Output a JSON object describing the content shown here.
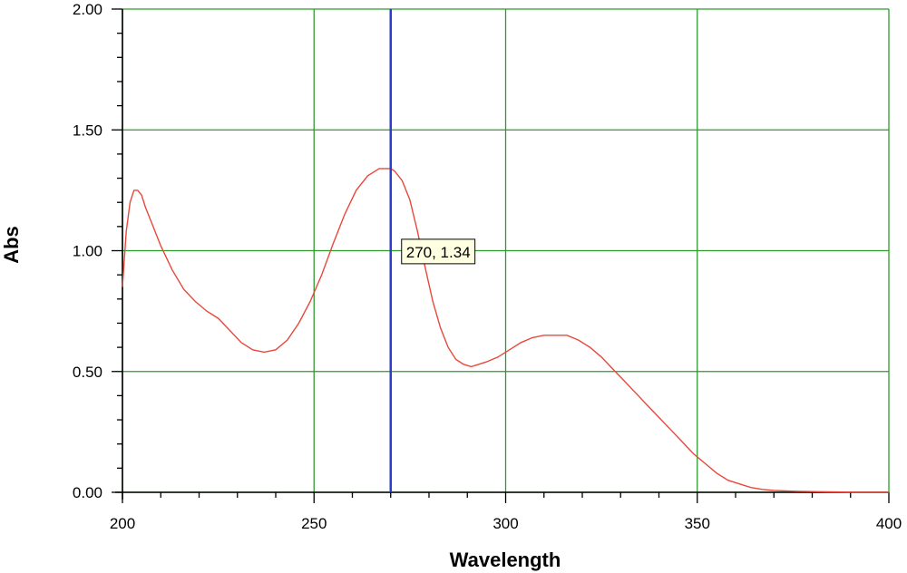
{
  "chart_data": {
    "type": "line",
    "xlabel": "Wavelength",
    "ylabel": "Abs",
    "xlim": [
      200,
      400
    ],
    "ylim": [
      0,
      2
    ],
    "x_ticks": [
      "200",
      "250",
      "300",
      "350",
      "400"
    ],
    "y_ticks": [
      "0.00",
      "0.50",
      "1.00",
      "1.50",
      "2.00"
    ],
    "grid": true,
    "series": [
      {
        "color": "#e8483c",
        "x": [
          200,
          201,
          202,
          203,
          204,
          205,
          206,
          208,
          210,
          213,
          216,
          219,
          222,
          225,
          228,
          231,
          234,
          237,
          240,
          243,
          246,
          249,
          252,
          255,
          258,
          261,
          264,
          267,
          269,
          270,
          271,
          273,
          275,
          277,
          279,
          281,
          283,
          285,
          287,
          289,
          291,
          293,
          295,
          298,
          301,
          304,
          307,
          310,
          313,
          316,
          319,
          322,
          325,
          328,
          331,
          334,
          337,
          340,
          343,
          346,
          349,
          352,
          355,
          358,
          361,
          364,
          367,
          370,
          373,
          376,
          380,
          384,
          388,
          392,
          396,
          400
        ],
        "y": [
          0.85,
          1.08,
          1.2,
          1.25,
          1.25,
          1.23,
          1.18,
          1.1,
          1.02,
          0.92,
          0.84,
          0.79,
          0.75,
          0.72,
          0.67,
          0.62,
          0.59,
          0.58,
          0.59,
          0.63,
          0.7,
          0.79,
          0.9,
          1.03,
          1.15,
          1.25,
          1.31,
          1.34,
          1.34,
          1.34,
          1.33,
          1.29,
          1.21,
          1.08,
          0.93,
          0.79,
          0.68,
          0.6,
          0.55,
          0.53,
          0.52,
          0.53,
          0.54,
          0.56,
          0.59,
          0.62,
          0.64,
          0.65,
          0.65,
          0.65,
          0.63,
          0.6,
          0.56,
          0.51,
          0.46,
          0.41,
          0.36,
          0.31,
          0.26,
          0.21,
          0.16,
          0.12,
          0.08,
          0.05,
          0.035,
          0.02,
          0.012,
          0.008,
          0.006,
          0.004,
          0.003,
          0.002,
          0.001,
          0,
          0,
          0
        ]
      }
    ],
    "cursor": {
      "x": 270,
      "color": "#2b3cc9"
    },
    "annotations": [
      {
        "text": "270, 1.34",
        "x": 270,
        "y": 1.34
      }
    ]
  }
}
